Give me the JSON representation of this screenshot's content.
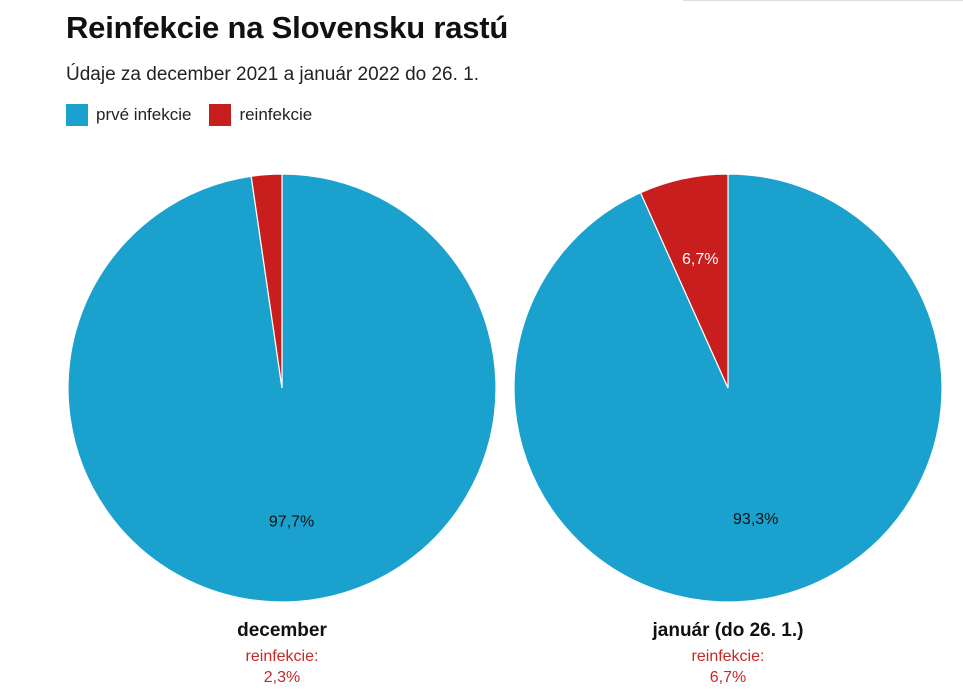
{
  "header": {
    "title": "Reinfekcie na Slovensku rastú",
    "subtitle": "Údaje za december 2021 a január 2022 do 26. 1."
  },
  "legend": [
    {
      "label": "prvé infekcie",
      "color": "#1aa1ce"
    },
    {
      "label": "reinfekcie",
      "color": "#c81e1e"
    }
  ],
  "chart_data": [
    {
      "type": "pie",
      "title": "december",
      "slices": [
        {
          "name": "prvé infekcie",
          "value": 97.7,
          "label": "97,7%",
          "color": "#1aa1ce"
        },
        {
          "name": "reinfekcie",
          "value": 2.3,
          "label": "",
          "color": "#c81e1e"
        }
      ],
      "note_label": "reinfekcie:",
      "note_value": "2,3%"
    },
    {
      "type": "pie",
      "title": "január (do 26. 1.)",
      "slices": [
        {
          "name": "prvé infekcie",
          "value": 93.3,
          "label": "93,3%",
          "color": "#1aa1ce"
        },
        {
          "name": "reinfekcie",
          "value": 6.7,
          "label": "6,7%",
          "color": "#c81e1e"
        }
      ],
      "note_label": "reinfekcie:",
      "note_value": "6,7%"
    }
  ]
}
